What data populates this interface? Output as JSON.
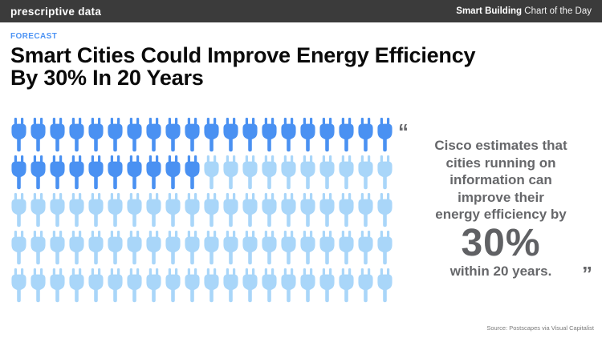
{
  "header": {
    "brand": "prescriptive data",
    "edition_bold": "Smart Building",
    "edition_rest": " Chart of the Day"
  },
  "kicker": "FORECAST",
  "title": {
    "line1": "Smart Cities Could Improve Energy Efficiency",
    "line2": "By 30% In 20 Years"
  },
  "quote": {
    "open_mark": "“",
    "close_mark": "”",
    "lines": [
      "Cisco estimates that",
      "cities running on",
      "information can",
      "improve their",
      "energy efficiency by"
    ],
    "stat": "30%",
    "suffix": "within 20 years."
  },
  "source": "Source: Postscapes via Visual Capitalist",
  "colors": {
    "header_bg": "#3b3b3b",
    "kicker_blue": "#4e94f4",
    "quote_gray": "#66676a",
    "plug_highlight": "#4a91f2",
    "plug_base": "#a9d6f9",
    "source_gray": "#7a7a7a"
  },
  "chart_data": {
    "type": "pictogram",
    "icon": "plug-icon",
    "rows": 5,
    "columns": 20,
    "total_units": 100,
    "highlighted_units": 30,
    "highlight_percent": 30,
    "fill_order": "row-major from top-left",
    "highlight_color": "#4a91f2",
    "base_color": "#a9d6f9",
    "title": "30 of 100 electrical plugs highlighted, representing a 30% energy efficiency improvement in 20 years"
  }
}
